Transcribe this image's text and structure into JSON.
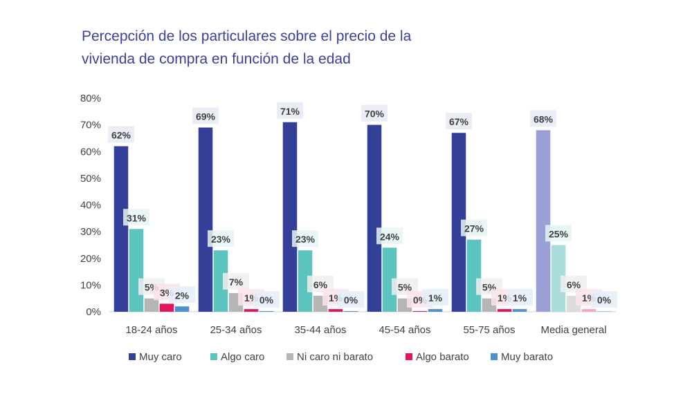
{
  "title_line1": "Percepción de los particulares sobre el precio de la",
  "title_line2": "vivienda de compra en función de la edad",
  "chart_data": {
    "type": "bar",
    "title": "Percepción de los particulares sobre el precio de la vivienda de compra en función de la edad",
    "xlabel": "",
    "ylabel": "",
    "ylim": [
      0,
      80
    ],
    "yticks": [
      "0%",
      "10%",
      "20%",
      "30%",
      "40%",
      "50%",
      "60%",
      "70%",
      "80%"
    ],
    "categories": [
      "18-24 años",
      "25-34 años",
      "35-44 años",
      "45-54 años",
      "55-75 años",
      "Media general"
    ],
    "series": [
      {
        "name": "Muy caro",
        "color": "#343f97",
        "values": [
          62,
          69,
          71,
          70,
          67,
          68
        ],
        "labels": [
          "62%",
          "69%",
          "71%",
          "70%",
          "67%",
          "68%"
        ]
      },
      {
        "name": "Algo caro",
        "color": "#5bc4bf",
        "values": [
          31,
          23,
          23,
          24,
          27,
          25
        ],
        "labels": [
          "31%",
          "23%",
          "23%",
          "24%",
          "27%",
          "25%"
        ]
      },
      {
        "name": "Ni caro ni barato",
        "color": "#b5b5b5",
        "values": [
          5,
          7,
          6,
          5,
          5,
          6
        ],
        "labels": [
          "5%",
          "7%",
          "6%",
          "5%",
          "5%",
          "6%"
        ]
      },
      {
        "name": "Algo barato",
        "color": "#e3165b",
        "values": [
          3,
          1,
          1,
          0,
          1,
          1
        ],
        "labels": [
          "3%",
          "1%",
          "1%",
          "0%",
          "1%",
          "1%"
        ]
      },
      {
        "name": "Muy barato",
        "color": "#4e8fcf",
        "values": [
          2,
          0,
          0,
          1,
          1,
          0
        ],
        "labels": [
          "2%",
          "0%",
          "0%",
          "1%",
          "1%",
          "0%"
        ]
      }
    ],
    "highlight_category_colors": [
      "#9aa0d4",
      "#a8ddd9",
      "#dcdcdc",
      "#f2a7bd",
      "#a7c6e8"
    ],
    "legend_position": "bottom",
    "grid": false
  }
}
